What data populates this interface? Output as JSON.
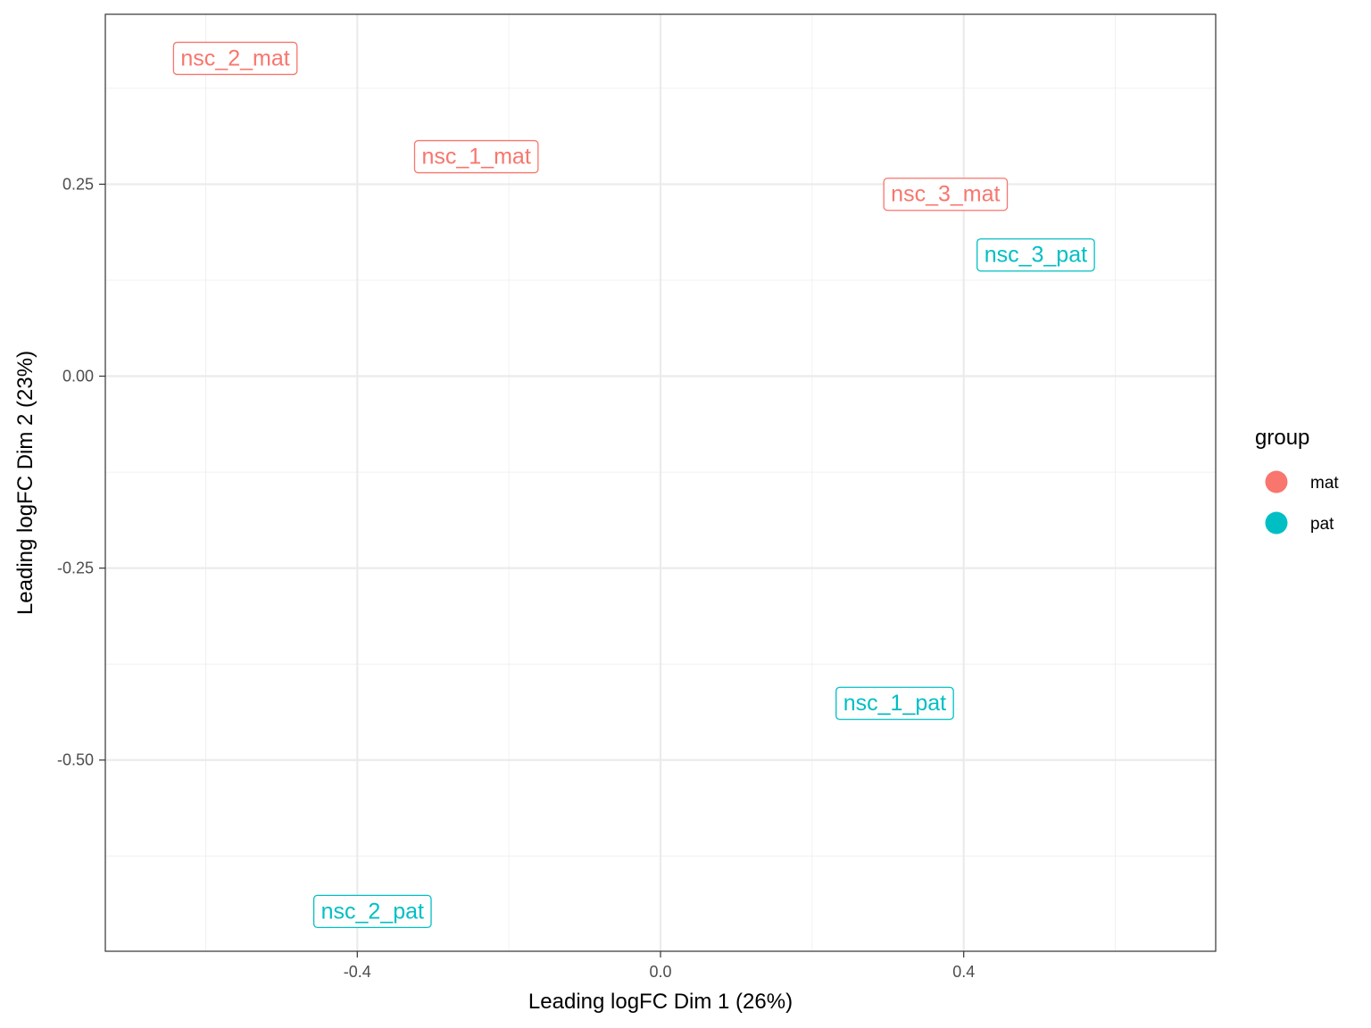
{
  "chart_data": {
    "type": "scatter",
    "title": "",
    "xlabel": "Leading logFC Dim 1 (26%)",
    "ylabel": "Leading logFC Dim 2 (23%)",
    "xlim": [
      -0.7324,
      0.7324
    ],
    "ylim": [
      -0.749,
      0.4713
    ],
    "x_ticks": [
      -0.4,
      0.0,
      0.4
    ],
    "x_tick_labels": [
      "-0.4",
      "0.0",
      "0.4"
    ],
    "y_ticks": [
      0.25,
      0.0,
      -0.25,
      -0.5
    ],
    "y_tick_labels": [
      "0.25",
      "0.00",
      "-0.25",
      "-0.50"
    ],
    "grid": true,
    "legend": {
      "title": "group",
      "position": "right",
      "entries": [
        {
          "name": "mat",
          "color": "#F8766D"
        },
        {
          "name": "pat",
          "color": "#00BFC4"
        }
      ]
    },
    "points": [
      {
        "label": "nsc_2_mat",
        "group": "mat",
        "x": -0.561,
        "y": 0.415
      },
      {
        "label": "nsc_1_mat",
        "group": "mat",
        "x": -0.243,
        "y": 0.287
      },
      {
        "label": "nsc_3_mat",
        "group": "mat",
        "x": 0.376,
        "y": 0.238
      },
      {
        "label": "nsc_3_pat",
        "group": "pat",
        "x": 0.495,
        "y": 0.159
      },
      {
        "label": "nsc_1_pat",
        "group": "pat",
        "x": 0.309,
        "y": -0.425
      },
      {
        "label": "nsc_2_pat",
        "group": "pat",
        "x": -0.38,
        "y": -0.696
      }
    ]
  }
}
